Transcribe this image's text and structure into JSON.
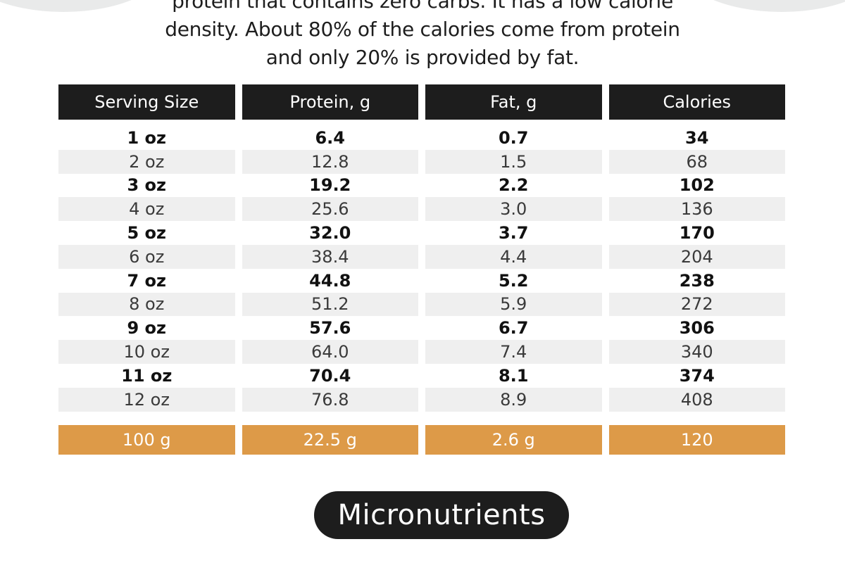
{
  "colors": {
    "header_bg": "#1d1d1d",
    "accent": "#dd9a48",
    "zebra": "#efefef"
  },
  "intro": {
    "line1": "protein that contains zero carbs. It has a low calorie",
    "line2": "density. About 80% of the calories come from protein",
    "line3": "and only 20% is provided by fat."
  },
  "table": {
    "headers": [
      "Serving Size",
      "Protein, g",
      "Fat, g",
      "Calories"
    ],
    "rows": [
      [
        "1 oz",
        "6.4",
        "0.7",
        "34"
      ],
      [
        "2 oz",
        "12.8",
        "1.5",
        "68"
      ],
      [
        "3 oz",
        "19.2",
        "2.2",
        "102"
      ],
      [
        "4 oz",
        "25.6",
        "3.0",
        "136"
      ],
      [
        "5 oz",
        "32.0",
        "3.7",
        "170"
      ],
      [
        "6 oz",
        "38.4",
        "4.4",
        "204"
      ],
      [
        "7 oz",
        "44.8",
        "5.2",
        "238"
      ],
      [
        "8 oz",
        "51.2",
        "5.9",
        "272"
      ],
      [
        "9 oz",
        "57.6",
        "6.7",
        "306"
      ],
      [
        "10 oz",
        "64.0",
        "7.4",
        "340"
      ],
      [
        "11 oz",
        "70.4",
        "8.1",
        "374"
      ],
      [
        "12 oz",
        "76.8",
        "8.9",
        "408"
      ]
    ],
    "footer": [
      "100 g",
      "22.5 g",
      "2.6 g",
      "120"
    ]
  },
  "section_button": "Micronutrients"
}
